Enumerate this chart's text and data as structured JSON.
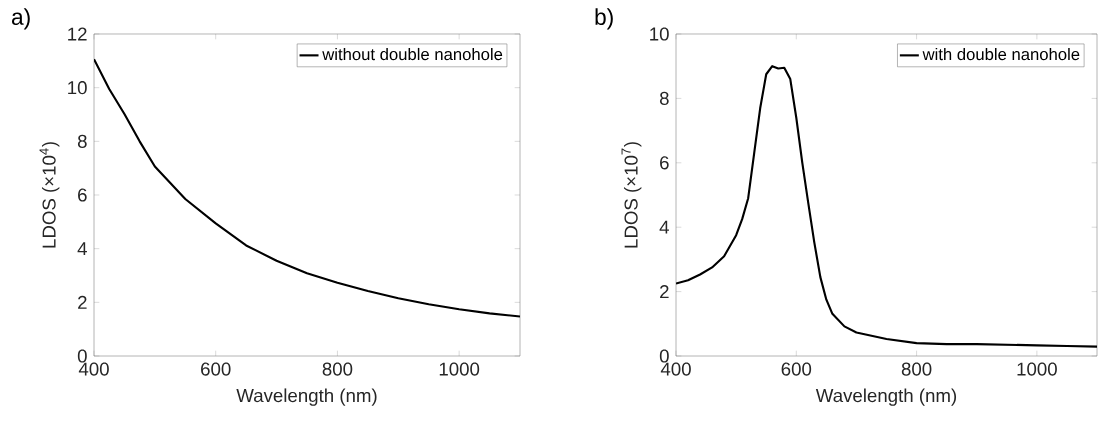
{
  "chart_data": [
    {
      "type": "line",
      "title": "a)",
      "xlabel": "Wavelength (nm)",
      "ylabel": "LDOS (×10$^{4}$)",
      "legend": "top right",
      "grid": false,
      "x": [
        400,
        425,
        450,
        475,
        500,
        550,
        600,
        650,
        700,
        750,
        800,
        850,
        900,
        950,
        1000,
        1050,
        1100
      ],
      "series": [
        {
          "name": "without double nanohole",
          "color": "#000000",
          "values": [
            11.06,
            9.95,
            9.02,
            8.0,
            7.06,
            5.85,
            4.94,
            4.12,
            3.55,
            3.08,
            2.73,
            2.42,
            2.15,
            1.93,
            1.74,
            1.59,
            1.47
          ]
        }
      ],
      "xlim": [
        400,
        1100
      ],
      "ylim": [
        0,
        12
      ],
      "xticks": [
        400,
        600,
        800,
        1000
      ],
      "yticks": [
        0,
        2,
        4,
        6,
        8,
        10,
        12
      ]
    },
    {
      "type": "line",
      "title": "b)",
      "xlabel": "Wavelength (nm)",
      "ylabel": "LDOS (×10$^{7}$)",
      "legend": "top right",
      "grid": false,
      "x": [
        400,
        420,
        440,
        460,
        480,
        500,
        510,
        520,
        530,
        540,
        550,
        560,
        570,
        580,
        590,
        600,
        610,
        620,
        630,
        640,
        650,
        660,
        680,
        700,
        750,
        800,
        850,
        900,
        950,
        1000,
        1050,
        1100
      ],
      "series": [
        {
          "name": "with double nanohole",
          "color": "#000000",
          "values": [
            2.25,
            2.35,
            2.53,
            2.75,
            3.1,
            3.75,
            4.25,
            4.9,
            6.3,
            7.7,
            8.75,
            9.0,
            8.93,
            8.95,
            8.6,
            7.4,
            6.0,
            4.74,
            3.52,
            2.45,
            1.75,
            1.31,
            0.92,
            0.73,
            0.53,
            0.4,
            0.37,
            0.37,
            0.35,
            0.33,
            0.31,
            0.29
          ]
        }
      ],
      "xlim": [
        400,
        1100
      ],
      "ylim": [
        0,
        10
      ],
      "xticks": [
        400,
        600,
        800,
        1000
      ],
      "yticks": [
        0,
        2,
        4,
        6,
        8,
        10
      ]
    }
  ]
}
